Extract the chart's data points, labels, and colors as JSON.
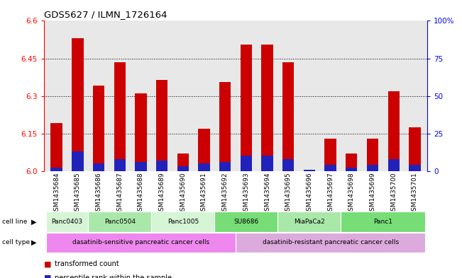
{
  "title": "GDS5627 / ILMN_1726164",
  "samples": [
    "GSM1435684",
    "GSM1435685",
    "GSM1435686",
    "GSM1435687",
    "GSM1435688",
    "GSM1435689",
    "GSM1435690",
    "GSM1435691",
    "GSM1435692",
    "GSM1435693",
    "GSM1435694",
    "GSM1435695",
    "GSM1435696",
    "GSM1435697",
    "GSM1435698",
    "GSM1435699",
    "GSM1435700",
    "GSM1435701"
  ],
  "red_values": [
    6.19,
    6.53,
    6.34,
    6.435,
    6.31,
    6.365,
    6.07,
    6.17,
    6.355,
    6.505,
    6.505,
    6.435,
    6.0,
    6.13,
    6.07,
    6.13,
    6.32,
    6.175
  ],
  "blue_pct": [
    2,
    13,
    5,
    8,
    6,
    7,
    3,
    5,
    6,
    10,
    10,
    8,
    1,
    4,
    2,
    4,
    8,
    4
  ],
  "ymin": 6.0,
  "ymax": 6.6,
  "yticks": [
    6.0,
    6.15,
    6.3,
    6.45,
    6.6
  ],
  "y2ticks": [
    0,
    25,
    50,
    75,
    100
  ],
  "y2labels": [
    "0",
    "25",
    "50",
    "75",
    "100%"
  ],
  "cell_lines": [
    {
      "label": "Panc0403",
      "start": 0,
      "end": 2,
      "color": "#d5f5d5"
    },
    {
      "label": "Panc0504",
      "start": 2,
      "end": 5,
      "color": "#aae8aa"
    },
    {
      "label": "Panc1005",
      "start": 5,
      "end": 8,
      "color": "#d5f5d5"
    },
    {
      "label": "SU8686",
      "start": 8,
      "end": 11,
      "color": "#77dd77"
    },
    {
      "label": "MiaPaCa2",
      "start": 11,
      "end": 14,
      "color": "#aae8aa"
    },
    {
      "label": "Panc1",
      "start": 14,
      "end": 18,
      "color": "#77dd77"
    }
  ],
  "cell_types": [
    {
      "label": "dasatinib-sensitive pancreatic cancer cells",
      "start": 0,
      "end": 9,
      "color": "#ee88ee"
    },
    {
      "label": "dasatinib-resistant pancreatic cancer cells",
      "start": 9,
      "end": 18,
      "color": "#ddaadd"
    }
  ],
  "bar_color_red": "#cc0000",
  "bar_color_blue": "#2222bb",
  "bar_width": 0.55,
  "chart_bg": "#e8e8e8",
  "xtick_bg": "#cccccc",
  "grid_color": "#000000"
}
